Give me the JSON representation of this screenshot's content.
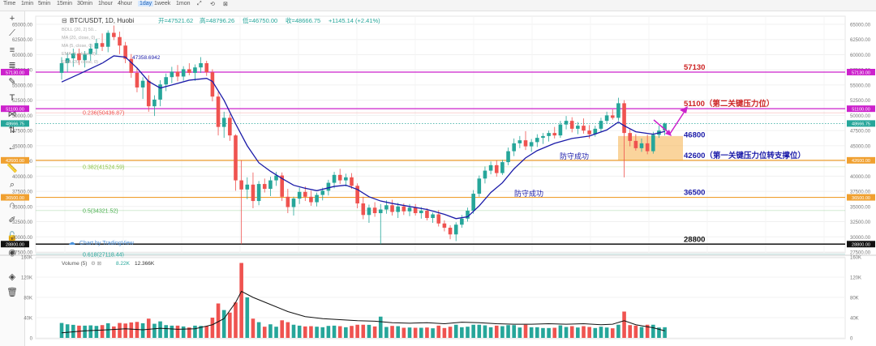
{
  "timeframes": [
    "Time",
    "1min",
    "5min",
    "15min",
    "30min",
    "1hour",
    "4hour",
    "1day",
    "1week",
    "1mon"
  ],
  "active_timeframe": "1day",
  "header": {
    "symbol": "BTC/USDT, 1D, Huobi",
    "open": "开=47521.62",
    "high": "高=48796.26",
    "low": "低=46750.00",
    "close": "收=48666.75",
    "change": "+1145.14 (+2.41%)"
  },
  "indicators": [
    "BOLL (20, 2) 50...",
    "MA (20, close, 0) ...",
    "MA (5, close, 0) ...",
    "EMA (5, close, 0) ...",
    "EMA (20, close, 0) ..."
  ],
  "ema_value_label": "47358.6942",
  "watermark": "Chart by TradingView",
  "volume_label": "Volume (5)",
  "volume_values": [
    "8.22K",
    "12.366K"
  ],
  "colors": {
    "up": "#26a69a",
    "down": "#ef5350",
    "ema": "#1a1aa8",
    "magenta": "#cc22cc",
    "orange": "#f0a030",
    "black": "#111111",
    "dotted": "#26a69a",
    "box": "#f5b04a"
  },
  "chart_data": {
    "type": "candlestick",
    "title": "BTC/USDT, 1D, Huobi",
    "y_axis": {
      "min": 27500,
      "max": 65000,
      "ticks": [
        27500,
        30000,
        32500,
        35000,
        37500,
        40000,
        42500,
        45000,
        47500,
        50000,
        52500,
        55000,
        57500,
        60000,
        62500,
        65000
      ]
    },
    "volume_axis": {
      "ticks": [
        "0",
        "40K",
        "80K",
        "120K",
        "160K"
      ]
    },
    "price_tags": [
      {
        "value": 57130,
        "text": "57130.00",
        "color": "#cc22cc"
      },
      {
        "value": 51100,
        "text": "51100.00",
        "color": "#cc22cc"
      },
      {
        "value": 48666.75,
        "text": "48666.75",
        "color": "#26a69a"
      },
      {
        "value": 42600,
        "text": "42600.00",
        "color": "#f0a030"
      },
      {
        "value": 36500,
        "text": "36500.00",
        "color": "#f0a030"
      },
      {
        "value": 28800,
        "text": "28800.00",
        "color": "#111111"
      }
    ],
    "levels": [
      {
        "value": 57130,
        "label": "57130",
        "color": "#cc22cc",
        "label_color": "#cc2222"
      },
      {
        "value": 51100,
        "label": "51100（第二关键压力位）",
        "color": "#cc22cc",
        "label_color": "#cc2222"
      },
      {
        "value": 42600,
        "label": "42600（第一关键压力位转支撑位）",
        "color": "#f0a030",
        "label_color": "#1a1aa8"
      },
      {
        "value": 36500,
        "label": "36500",
        "color": "#f0a030",
        "label_color": "#1a1aa8"
      },
      {
        "value": 28800,
        "label": "28800",
        "color": "#111111",
        "label_color": "#111111"
      }
    ],
    "fib_levels": [
      {
        "value": 50436.87,
        "label": "0.236(50436.87)",
        "color": "#ef5350"
      },
      {
        "value": 41524.59,
        "label": "0.382(41524.59)",
        "color": "#8bc34a"
      },
      {
        "value": 34321.52,
        "label": "0.5(34321.52)",
        "color": "#4caf50"
      },
      {
        "value": 27118.44,
        "label": "0.618(27118.44)",
        "color": "#26a69a"
      }
    ],
    "annotations": [
      {
        "text": "46800",
        "color": "#1a1aa8"
      },
      {
        "text": "防守成功",
        "color": "#1a1aa8"
      },
      {
        "text": "防守成功",
        "color": "#1a1aa8"
      }
    ],
    "candles": [
      [
        1,
        57000,
        59600,
        55900,
        58600
      ],
      [
        2,
        58600,
        60300,
        57100,
        59400
      ],
      [
        3,
        59400,
        61000,
        58000,
        60200
      ],
      [
        4,
        60200,
        61000,
        58300,
        59100
      ],
      [
        5,
        59100,
        60600,
        57900,
        60100
      ],
      [
        6,
        60100,
        61800,
        59000,
        61000
      ],
      [
        7,
        61000,
        62600,
        60000,
        61900
      ],
      [
        8,
        61900,
        63500,
        60600,
        61300
      ],
      [
        9,
        61300,
        64000,
        60400,
        63600
      ],
      [
        10,
        63600,
        64800,
        62400,
        62900
      ],
      [
        11,
        62900,
        63800,
        60100,
        61500
      ],
      [
        12,
        61500,
        62100,
        58600,
        59300
      ],
      [
        13,
        59300,
        60100,
        56200,
        57000
      ],
      [
        14,
        57000,
        57900,
        53800,
        54600
      ],
      [
        15,
        54600,
        56300,
        52700,
        55700
      ],
      [
        16,
        55700,
        56600,
        50600,
        51500
      ],
      [
        17,
        51500,
        53300,
        49900,
        52600
      ],
      [
        18,
        52600,
        55800,
        51500,
        55100
      ],
      [
        19,
        55100,
        56900,
        54000,
        56300
      ],
      [
        20,
        56300,
        58000,
        55300,
        57200
      ],
      [
        21,
        57200,
        58300,
        55600,
        56400
      ],
      [
        22,
        56400,
        58100,
        55700,
        57600
      ],
      [
        23,
        57600,
        58600,
        56600,
        57000
      ],
      [
        24,
        57000,
        58400,
        55700,
        57900
      ],
      [
        25,
        57900,
        59600,
        57000,
        58600
      ],
      [
        26,
        58600,
        59000,
        56500,
        57100
      ],
      [
        27,
        57100,
        57600,
        52300,
        53100
      ],
      [
        28,
        53100,
        53900,
        46700,
        48100
      ],
      [
        29,
        48100,
        50600,
        46300,
        49600
      ],
      [
        30,
        49600,
        50200,
        45800,
        46700
      ],
      [
        31,
        46700,
        46900,
        37600,
        39300
      ],
      [
        32,
        39300,
        42600,
        28800,
        37800
      ],
      [
        33,
        37800,
        39800,
        36200,
        38600
      ],
      [
        34,
        38600,
        40600,
        34700,
        35900
      ],
      [
        35,
        35900,
        39200,
        35200,
        38700
      ],
      [
        36,
        38700,
        39600,
        37300,
        37900
      ],
      [
        37,
        37900,
        39900,
        36700,
        39300
      ],
      [
        38,
        39300,
        40700,
        38400,
        40100
      ],
      [
        39,
        40100,
        40600,
        35900,
        36600
      ],
      [
        40,
        36600,
        37900,
        33900,
        34900
      ],
      [
        41,
        34900,
        36600,
        33500,
        36300
      ],
      [
        42,
        36300,
        38100,
        35400,
        37400
      ],
      [
        43,
        37400,
        38300,
        35900,
        36600
      ],
      [
        44,
        36600,
        37600,
        35100,
        35700
      ],
      [
        45,
        35700,
        37300,
        35000,
        36900
      ],
      [
        46,
        36900,
        38100,
        36000,
        37600
      ],
      [
        47,
        37600,
        39400,
        36800,
        38900
      ],
      [
        48,
        38900,
        40700,
        38000,
        40200
      ],
      [
        49,
        40200,
        41200,
        38700,
        39300
      ],
      [
        50,
        39300,
        40400,
        38300,
        39800
      ],
      [
        51,
        39800,
        40500,
        37900,
        38400
      ],
      [
        52,
        38400,
        38800,
        34700,
        35500
      ],
      [
        53,
        35500,
        36600,
        32900,
        33600
      ],
      [
        54,
        33600,
        35300,
        32300,
        34800
      ],
      [
        55,
        34800,
        35700,
        33300,
        33900
      ],
      [
        56,
        33900,
        35400,
        28800,
        34500
      ],
      [
        57,
        34500,
        36000,
        33800,
        35200
      ],
      [
        58,
        35200,
        36100,
        33500,
        34100
      ],
      [
        59,
        34100,
        35600,
        33100,
        35000
      ],
      [
        60,
        35000,
        35500,
        33600,
        34200
      ],
      [
        61,
        34200,
        35400,
        33400,
        34800
      ],
      [
        62,
        34800,
        35400,
        33500,
        33900
      ],
      [
        63,
        33900,
        34900,
        33000,
        34300
      ],
      [
        64,
        34300,
        34700,
        32700,
        33100
      ],
      [
        65,
        33100,
        34000,
        32300,
        33700
      ],
      [
        66,
        33700,
        34400,
        31700,
        32200
      ],
      [
        67,
        32200,
        32700,
        30900,
        31500
      ],
      [
        68,
        31500,
        31900,
        29600,
        30400
      ],
      [
        69,
        30400,
        32400,
        29300,
        32000
      ],
      [
        70,
        32000,
        33600,
        31500,
        33000
      ],
      [
        71,
        33000,
        34800,
        32500,
        34300
      ],
      [
        72,
        34300,
        37700,
        33800,
        37100
      ],
      [
        73,
        37100,
        40100,
        36600,
        39600
      ],
      [
        74,
        39600,
        41600,
        38800,
        40900
      ],
      [
        75,
        40900,
        42400,
        40300,
        41800
      ],
      [
        76,
        41800,
        42600,
        39900,
        40500
      ],
      [
        77,
        40500,
        42700,
        40200,
        42300
      ],
      [
        78,
        42300,
        44700,
        41800,
        44100
      ],
      [
        79,
        44100,
        46200,
        43300,
        45400
      ],
      [
        80,
        45400,
        46600,
        44600,
        45900
      ],
      [
        81,
        45900,
        47400,
        44300,
        44900
      ],
      [
        82,
        44900,
        46100,
        44000,
        45600
      ],
      [
        83,
        45600,
        46900,
        44800,
        46300
      ],
      [
        84,
        46300,
        47100,
        45300,
        46600
      ],
      [
        85,
        46600,
        47500,
        45700,
        47100
      ],
      [
        86,
        47100,
        48100,
        46200,
        46700
      ],
      [
        87,
        46700,
        49100,
        46300,
        48500
      ],
      [
        88,
        48500,
        49900,
        47700,
        49100
      ],
      [
        89,
        49100,
        49700,
        47200,
        47800
      ],
      [
        90,
        47800,
        48900,
        46900,
        48300
      ],
      [
        91,
        48300,
        49500,
        47000,
        47500
      ],
      [
        92,
        47500,
        48400,
        46200,
        46900
      ],
      [
        93,
        46900,
        48300,
        46500,
        47800
      ],
      [
        94,
        47800,
        49600,
        47300,
        49100
      ],
      [
        95,
        49100,
        50600,
        48600,
        50000
      ],
      [
        96,
        50000,
        51000,
        49300,
        49600
      ],
      [
        97,
        49600,
        52900,
        49100,
        52000
      ],
      [
        98,
        52000,
        52500,
        39800,
        47100
      ],
      [
        99,
        47100,
        47800,
        44900,
        45800
      ],
      [
        100,
        45800,
        46900,
        44200,
        44600
      ],
      [
        101,
        44600,
        46200,
        44000,
        45400
      ],
      [
        102,
        45400,
        46800,
        43600,
        44100
      ],
      [
        103,
        44100,
        47300,
        43700,
        46800
      ],
      [
        104,
        46800,
        48300,
        46300,
        47500
      ],
      [
        105,
        47500,
        48800,
        46700,
        48666.75
      ]
    ],
    "ema_points": [
      [
        1,
        55500
      ],
      [
        4,
        56800
      ],
      [
        8,
        58600
      ],
      [
        10,
        59800
      ],
      [
        12,
        59600
      ],
      [
        14,
        57800
      ],
      [
        16,
        55600
      ],
      [
        18,
        54500
      ],
      [
        20,
        55000
      ],
      [
        23,
        55800
      ],
      [
        26,
        56100
      ],
      [
        27,
        55600
      ],
      [
        29,
        52500
      ],
      [
        31,
        48600
      ],
      [
        33,
        45000
      ],
      [
        35,
        42200
      ],
      [
        37,
        40800
      ],
      [
        39,
        39600
      ],
      [
        41,
        38500
      ],
      [
        43,
        38000
      ],
      [
        45,
        37600
      ],
      [
        48,
        38300
      ],
      [
        50,
        38500
      ],
      [
        52,
        37800
      ],
      [
        54,
        36600
      ],
      [
        56,
        35900
      ],
      [
        58,
        35500
      ],
      [
        61,
        35000
      ],
      [
        64,
        34500
      ],
      [
        67,
        33700
      ],
      [
        69,
        33000
      ],
      [
        71,
        33300
      ],
      [
        73,
        35100
      ],
      [
        75,
        37300
      ],
      [
        77,
        38900
      ],
      [
        79,
        41200
      ],
      [
        81,
        43000
      ],
      [
        83,
        44200
      ],
      [
        86,
        45400
      ],
      [
        89,
        46200
      ],
      [
        92,
        46600
      ],
      [
        95,
        47600
      ],
      [
        97,
        48900
      ],
      [
        98,
        48300
      ],
      [
        100,
        47300
      ],
      [
        103,
        46900
      ],
      [
        105,
        47358
      ]
    ],
    "volume_ma_points": [
      [
        1,
        10
      ],
      [
        5,
        14
      ],
      [
        9,
        16
      ],
      [
        12,
        18
      ],
      [
        15,
        16
      ],
      [
        18,
        19
      ],
      [
        21,
        17
      ],
      [
        24,
        18
      ],
      [
        27,
        26
      ],
      [
        29,
        38
      ],
      [
        31,
        70
      ],
      [
        32,
        92
      ],
      [
        34,
        80
      ],
      [
        37,
        66
      ],
      [
        40,
        52
      ],
      [
        43,
        42
      ],
      [
        46,
        38
      ],
      [
        49,
        36
      ],
      [
        52,
        34
      ],
      [
        55,
        33
      ],
      [
        58,
        30
      ],
      [
        61,
        29
      ],
      [
        64,
        30
      ],
      [
        67,
        28
      ],
      [
        70,
        31
      ],
      [
        73,
        30
      ],
      [
        76,
        28
      ],
      [
        79,
        27
      ],
      [
        82,
        27
      ],
      [
        85,
        28
      ],
      [
        88,
        27
      ],
      [
        91,
        28
      ],
      [
        94,
        26
      ],
      [
        96,
        27
      ],
      [
        98,
        34
      ],
      [
        100,
        26
      ],
      [
        103,
        20
      ],
      [
        105,
        14
      ]
    ]
  }
}
